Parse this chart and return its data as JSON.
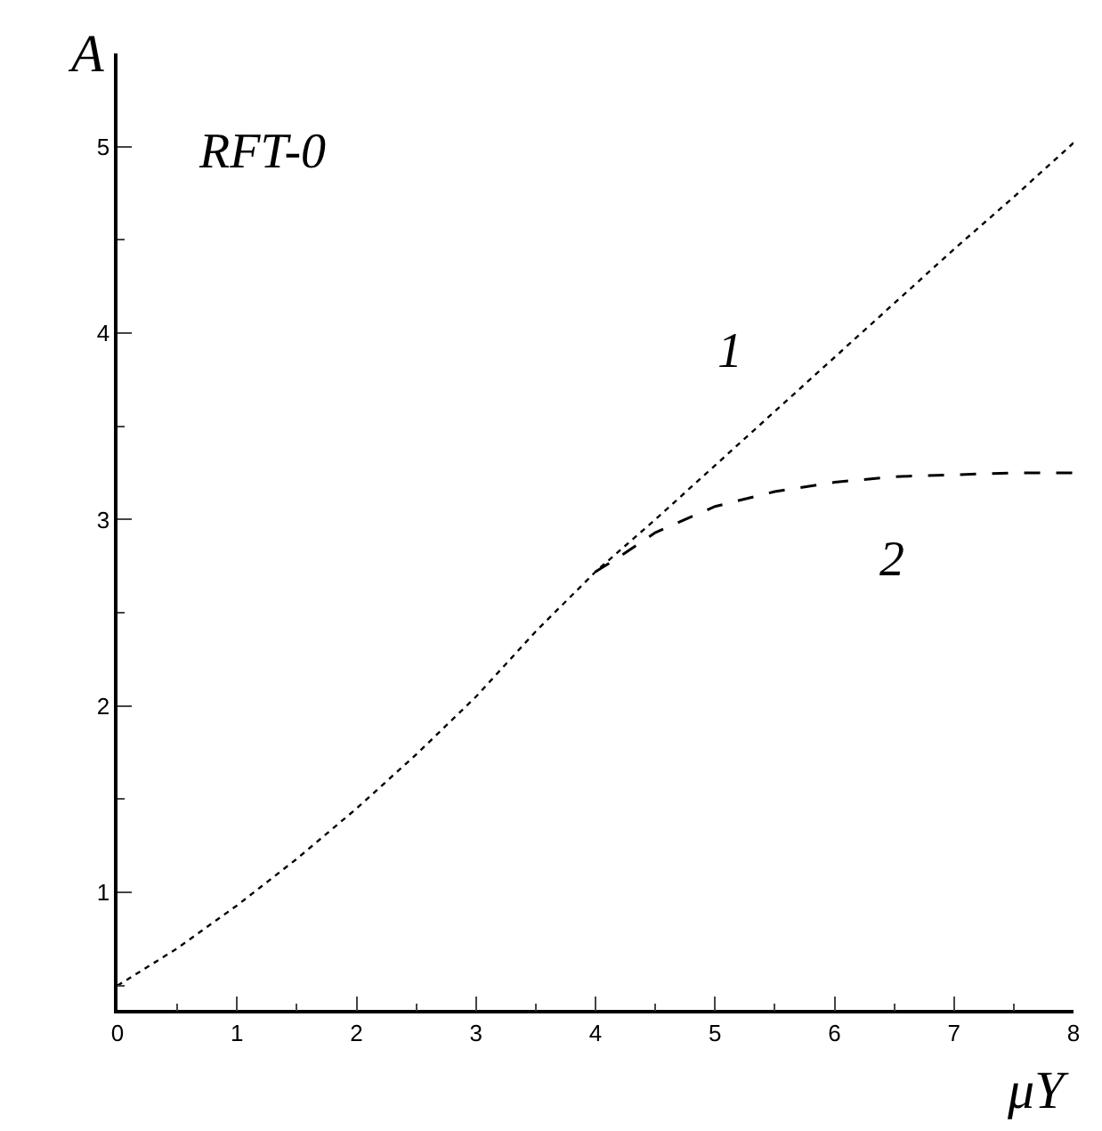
{
  "chart_data": {
    "type": "line",
    "xlabel": "μY",
    "ylabel": "A",
    "x": [
      0,
      0.5,
      1,
      1.5,
      2,
      2.5,
      3,
      3.5,
      4,
      4.5,
      5,
      5.5,
      6,
      6.5,
      7,
      7.5,
      8
    ],
    "series": [
      {
        "color": "#000000",
        "line_style": "dotted",
        "values": [
          0.5,
          0.7,
          0.93,
          1.18,
          1.45,
          1.74,
          2.05,
          2.4,
          2.72,
          3.0,
          3.29,
          3.58,
          3.87,
          4.16,
          4.45,
          4.73,
          5.02
        ]
      },
      {
        "color": "#000000",
        "line_style": "dashed",
        "x": [
          4,
          4.2,
          4.5,
          5,
          5.5,
          6,
          6.5,
          7,
          7.5,
          8
        ],
        "values": [
          2.72,
          2.8,
          2.93,
          3.07,
          3.15,
          3.2,
          3.23,
          3.24,
          3.25,
          3.25
        ]
      }
    ],
    "annotations": [
      "RFT-0",
      "1",
      "2"
    ],
    "xlim": [
      0,
      8
    ],
    "xticks": [
      0,
      1,
      2,
      3,
      4,
      5,
      6,
      7,
      8
    ],
    "ylim": [
      0.37,
      5.5
    ],
    "yticks": [
      1,
      2,
      3,
      4,
      5
    ]
  }
}
